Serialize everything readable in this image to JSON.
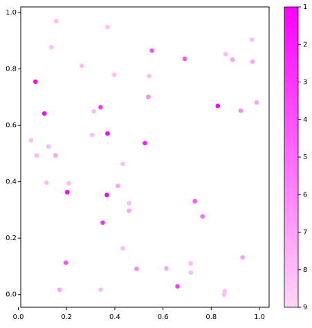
{
  "chart_data": {
    "type": "scatter",
    "x": [
      0.157,
      0.37,
      0.554,
      0.137,
      0.263,
      0.398,
      0.542,
      0.69,
      0.859,
      0.888,
      0.968,
      0.971,
      0.071,
      0.341,
      0.313,
      0.539,
      0.827,
      0.922,
      0.988,
      0.108,
      0.37,
      0.306,
      0.525,
      0.053,
      0.125,
      0.076,
      0.154,
      0.433,
      0.117,
      0.209,
      0.413,
      0.203,
      0.367,
      0.459,
      0.732,
      0.459,
      0.764,
      0.35,
      0.433,
      0.93,
      0.197,
      0.715,
      0.49,
      0.614,
      0.715,
      0.66,
      0.171,
      0.341,
      0.856,
      0.853
    ],
    "y": [
      0.97,
      0.948,
      0.865,
      0.877,
      0.811,
      0.779,
      0.775,
      0.836,
      0.853,
      0.833,
      0.904,
      0.826,
      0.755,
      0.664,
      0.65,
      0.701,
      0.669,
      0.652,
      0.681,
      0.642,
      0.571,
      0.566,
      0.537,
      0.547,
      0.525,
      0.493,
      0.493,
      0.463,
      0.397,
      0.395,
      0.385,
      0.363,
      0.353,
      0.324,
      0.331,
      0.297,
      0.277,
      0.255,
      0.164,
      0.132,
      0.113,
      0.11,
      0.091,
      0.093,
      0.078,
      0.029,
      0.017,
      0.017,
      0.012,
      0.0
    ],
    "c": [
      8,
      8,
      4,
      8,
      8,
      8,
      8,
      4,
      8,
      7,
      8,
      7,
      1,
      3,
      8,
      6,
      1,
      6,
      7,
      1,
      1,
      8,
      2,
      8,
      8,
      8,
      7,
      8,
      8,
      8,
      7,
      1,
      1,
      8,
      4,
      7,
      5,
      3,
      8,
      7,
      4,
      8,
      6,
      7,
      8,
      3,
      7,
      8,
      8,
      8
    ],
    "xlim": [
      0.01,
      1.04
    ],
    "ylim": [
      -0.045,
      1.02
    ],
    "xticks": [
      {
        "value": 0,
        "label": "0.0"
      },
      0.2,
      0.4,
      0.6,
      0.8,
      {
        "value": 1,
        "label": "1.0"
      }
    ],
    "yticks": [
      {
        "value": 0,
        "label": "0.0"
      },
      0.2,
      0.4,
      0.6,
      0.8,
      {
        "value": 1,
        "label": "1.0"
      }
    ],
    "colormap": [
      "#ff00ff",
      "#ffd6f7"
    ],
    "clim": [
      1,
      9
    ],
    "cticks": [
      1,
      2,
      3,
      4,
      5,
      6,
      7,
      8,
      9
    ],
    "colorbar_inverted": true
  }
}
